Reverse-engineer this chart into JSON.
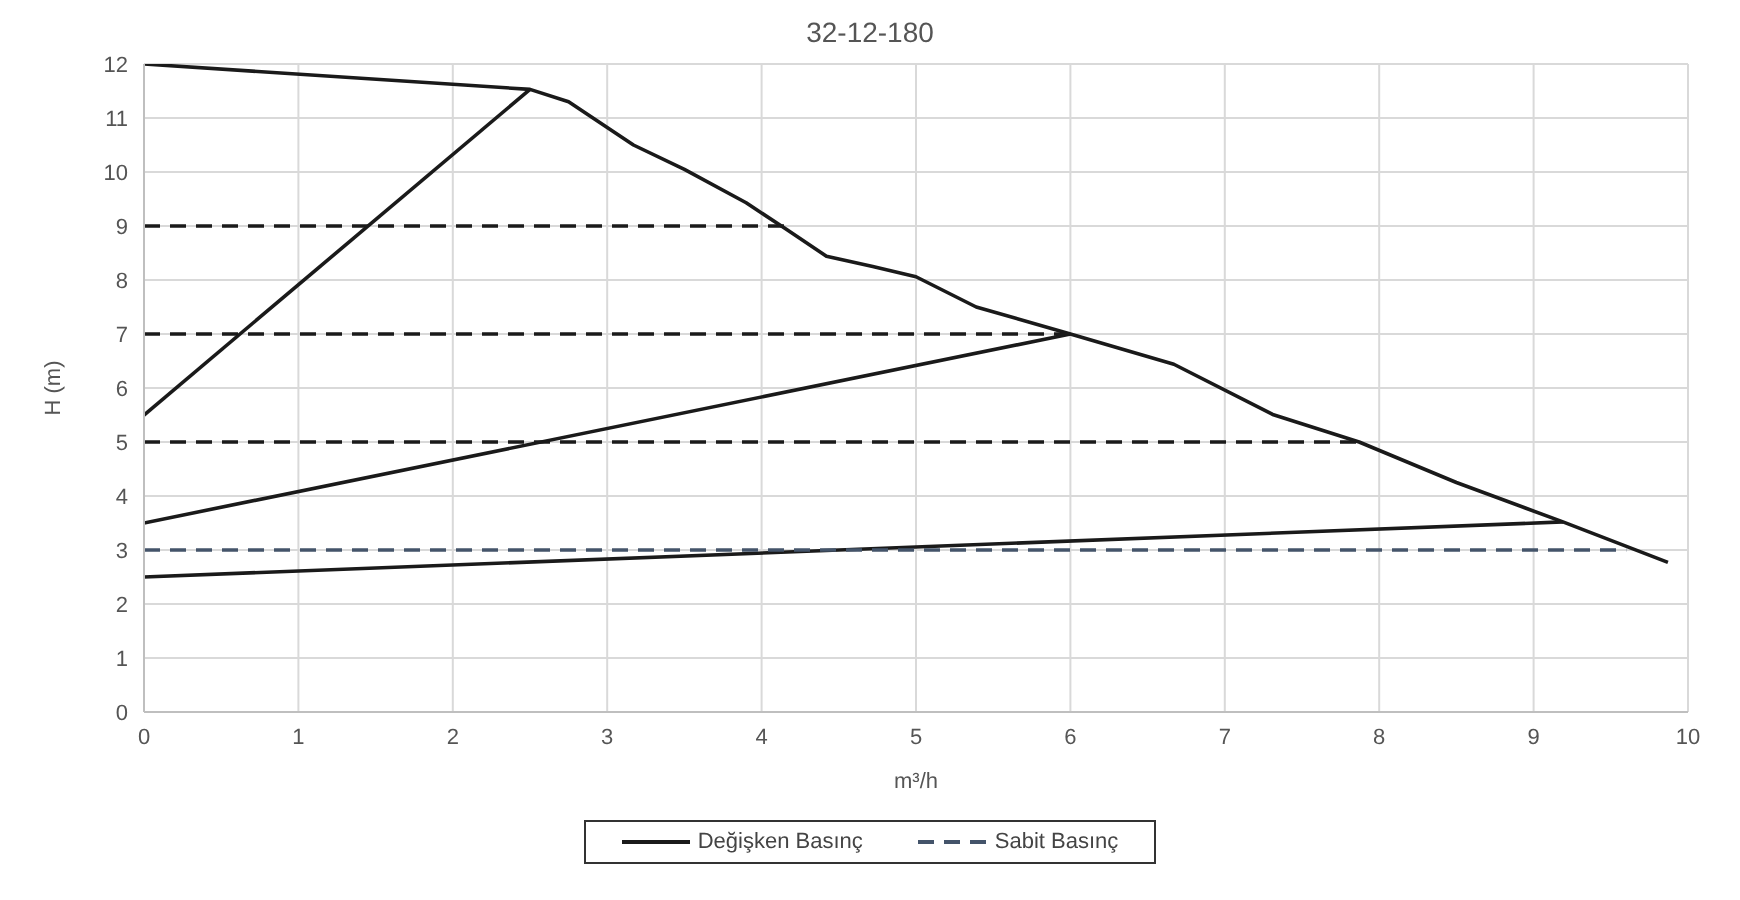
{
  "chart_data": {
    "type": "line",
    "title": "32-12-180",
    "xlabel": "m³/h",
    "ylabel": "H (m)",
    "xlim": [
      0,
      10
    ],
    "xticks": [
      0,
      1,
      2,
      3,
      4,
      5,
      6,
      7,
      8,
      9,
      10
    ],
    "ylim": [
      0,
      12
    ],
    "yticks": [
      0,
      1,
      2,
      3,
      4,
      5,
      6,
      7,
      8,
      9,
      10,
      11,
      12
    ],
    "grid": true,
    "legend": "bottom",
    "marker": "none",
    "series": [
      {
        "color": "#1a1a1a",
        "line_style": "solid",
        "x": [
          0,
          2.5,
          2.75,
          3.17,
          3.5,
          3.9,
          4.16,
          4.42,
          4.72,
          5,
          5.39,
          6,
          6.67,
          7.31,
          7.87,
          8.5,
          9.19,
          9.87
        ],
        "values": [
          12,
          11.53,
          11.3,
          10.5,
          10.05,
          9.43,
          8.94,
          8.44,
          8.25,
          8.06,
          7.5,
          7,
          6.44,
          5.51,
          5,
          4.25,
          3.52,
          2.77
        ]
      },
      {
        "name": "Değişken Basınç",
        "color": "#1a1a1a",
        "line_style": "solid",
        "x": [
          0,
          2.5
        ],
        "values": [
          5.5,
          11.53
        ]
      },
      {
        "color": "#1a1a1a",
        "line_style": "solid",
        "x": [
          0,
          6
        ],
        "values": [
          3.5,
          7
        ]
      },
      {
        "color": "#1a1a1a",
        "line_style": "solid",
        "x": [
          0,
          9.19
        ],
        "values": [
          2.5,
          3.52
        ]
      },
      {
        "color": "#1a1a1a",
        "line_style": "dashed",
        "x": [
          0,
          4.16
        ],
        "values": [
          9,
          9
        ]
      },
      {
        "color": "#1a1a1a",
        "line_style": "dashed",
        "x": [
          0,
          6
        ],
        "values": [
          7,
          7
        ]
      },
      {
        "color": "#1a1a1a",
        "line_style": "dashed",
        "x": [
          0,
          7.87
        ],
        "values": [
          5,
          5
        ]
      },
      {
        "name": "Sabit Basınç",
        "color": "#44546a",
        "line_style": "dashed",
        "x": [
          0,
          9.6
        ],
        "values": [
          3,
          3
        ]
      }
    ]
  }
}
